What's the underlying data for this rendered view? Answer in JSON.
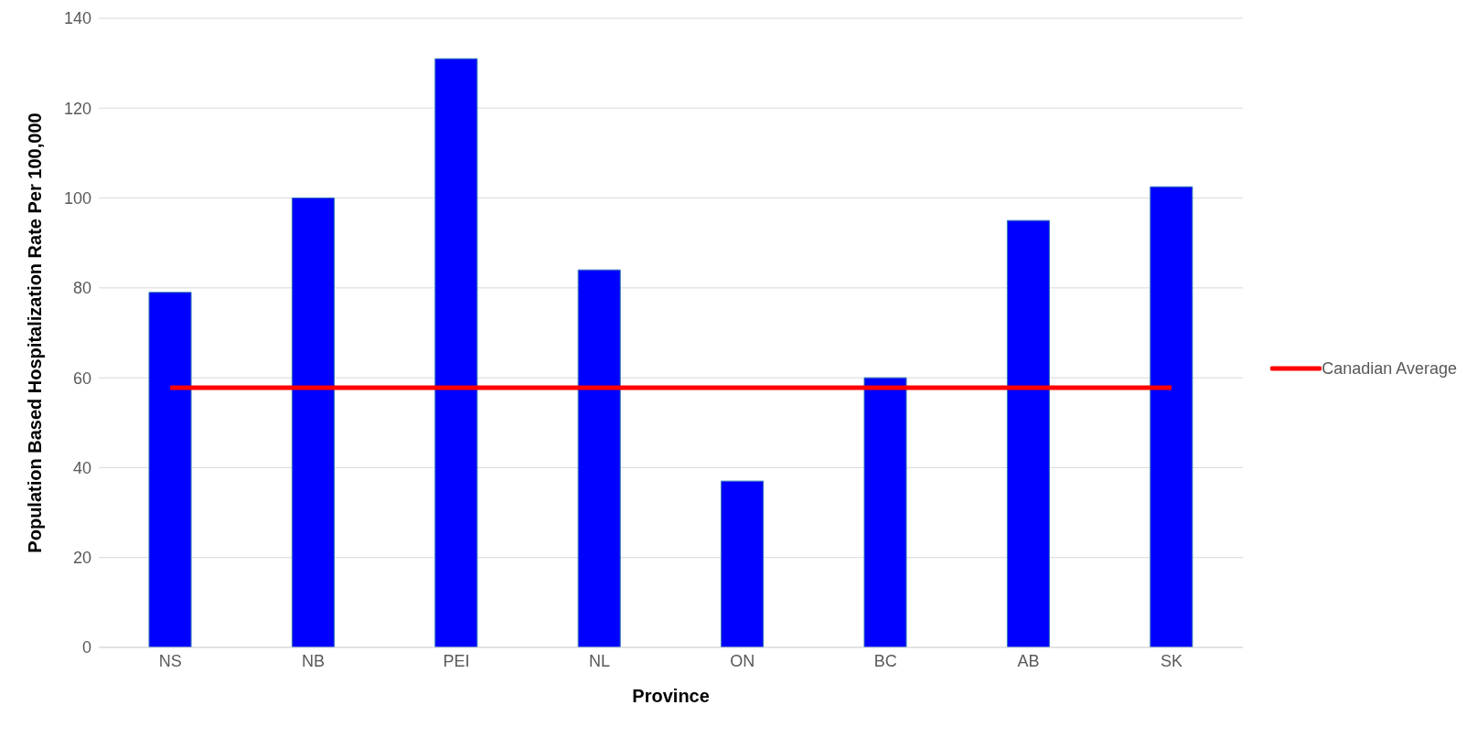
{
  "chart_data": {
    "type": "bar",
    "xlabel": "Province",
    "ylabel": "Population Based Hospitalization Rate Per 100,000",
    "categories": [
      "NS",
      "NB",
      "PEI",
      "NL",
      "ON",
      "BC",
      "AB",
      "SK"
    ],
    "series": [
      {
        "color": "#0000ff",
        "values": [
          79,
          100,
          131,
          84,
          37,
          60,
          95,
          102.5
        ]
      },
      {
        "type": "line",
        "name": "Canadian Average",
        "color": "#ff0000",
        "values": [
          57.8,
          57.8,
          57.8,
          57.8,
          57.8,
          57.8,
          57.8,
          57.8
        ],
        "marker": "none"
      }
    ],
    "ylim": [
      0,
      140
    ],
    "yticks": [
      0,
      20,
      40,
      60,
      80,
      100,
      120,
      140
    ],
    "grid": "y",
    "legend": "right"
  }
}
